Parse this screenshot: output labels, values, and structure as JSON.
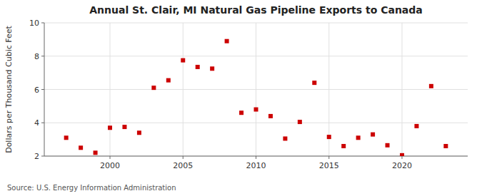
{
  "chart_data": {
    "type": "scatter",
    "title": "Annual St. Clair, MI Natural Gas Pipeline Exports to Canada",
    "ylabel": "Dollars per Thousand Cubic Feet",
    "source": "Source: U.S. Energy Information Administration",
    "x": [
      1997,
      1998,
      1999,
      2000,
      2001,
      2002,
      2003,
      2004,
      2005,
      2006,
      2007,
      2008,
      2009,
      2010,
      2011,
      2012,
      2013,
      2014,
      2015,
      2016,
      2017,
      2018,
      2019,
      2020,
      2021,
      2022,
      2023
    ],
    "values": [
      3.1,
      2.5,
      2.2,
      3.7,
      3.75,
      3.4,
      6.1,
      6.55,
      7.75,
      7.35,
      7.25,
      8.9,
      4.6,
      4.8,
      4.4,
      3.05,
      4.05,
      6.4,
      3.15,
      2.6,
      3.1,
      3.3,
      2.65,
      2.05,
      3.8,
      6.2,
      2.6
    ],
    "color": "#cc0000",
    "marker": "square",
    "xlim": [
      1995.5,
      2024.5
    ],
    "xticks": [
      2000,
      2005,
      2010,
      2015,
      2020
    ],
    "ylim": [
      2,
      10
    ],
    "yticks": [
      2,
      4,
      6,
      8,
      10
    ],
    "grid": true
  }
}
